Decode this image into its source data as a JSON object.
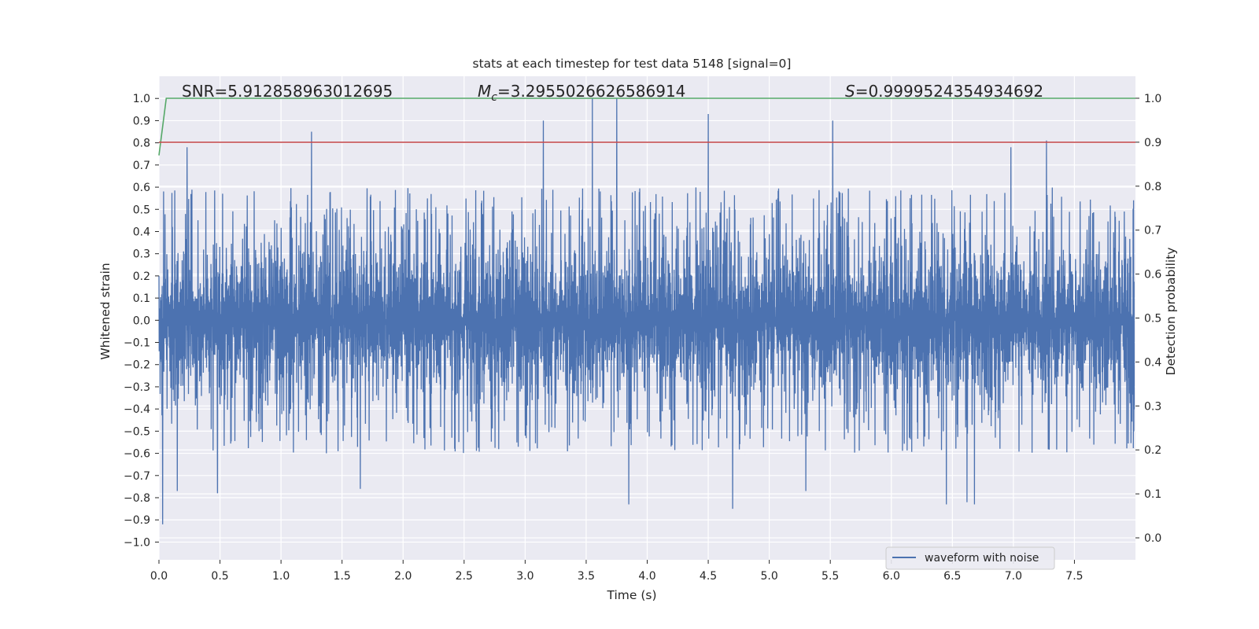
{
  "chart_data": {
    "type": "line",
    "title": "stats at each timestep for test data 5148 [signal=0]",
    "xlabel": "Time (s)",
    "ylabel": "Whitened strain",
    "y2label": "Detection probability",
    "xlim": [
      0.0,
      8.0
    ],
    "ylim": [
      -1.08,
      1.1
    ],
    "y2lim": [
      -0.05,
      1.05
    ],
    "x_ticks": [
      "0.0",
      "0.5",
      "1.0",
      "1.5",
      "2.0",
      "2.5",
      "3.0",
      "3.5",
      "4.0",
      "4.5",
      "5.0",
      "5.5",
      "6.0",
      "6.5",
      "7.0",
      "7.5"
    ],
    "y_ticks": [
      "1.0",
      "0.9",
      "0.8",
      "0.7",
      "0.6",
      "0.5",
      "0.4",
      "0.3",
      "0.2",
      "0.1",
      "0.0",
      "−0.1",
      "−0.2",
      "−0.3",
      "−0.4",
      "−0.5",
      "−0.6",
      "−0.7",
      "−0.8",
      "−0.9",
      "−1.0"
    ],
    "y2_ticks": [
      "1.0",
      "0.9",
      "0.8",
      "0.7",
      "0.6",
      "0.5",
      "0.4",
      "0.3",
      "0.2",
      "0.1",
      "0.0"
    ],
    "grid": true,
    "annotations": {
      "snr": "SNR=5.912858963012695",
      "mc_symbol": "M",
      "mc_sub": "c",
      "mc_value": "=3.2955026626586914",
      "s_symbol": "S",
      "s_value": "=0.9999524354934692"
    },
    "legend": {
      "label": "waveform with noise",
      "location": "lower-right"
    },
    "series": [
      {
        "name": "waveform with noise",
        "axis": "left",
        "color": "#4c72b0",
        "style": "dense-noise",
        "core_amplitude": 0.24,
        "typical_upper": 0.45,
        "typical_lower": -0.45,
        "notable_peaks": [
          {
            "x": 1.25,
            "y": 0.85
          },
          {
            "x": 3.15,
            "y": 0.9
          },
          {
            "x": 3.55,
            "y": 1.0
          },
          {
            "x": 3.75,
            "y": 1.0
          },
          {
            "x": 4.5,
            "y": 0.93
          },
          {
            "x": 5.52,
            "y": 0.9
          },
          {
            "x": 7.27,
            "y": 0.81
          },
          {
            "x": 0.23,
            "y": 0.78
          },
          {
            "x": 6.98,
            "y": 0.78
          }
        ],
        "notable_troughs": [
          {
            "x": 0.03,
            "y": -0.92
          },
          {
            "x": 0.15,
            "y": -0.77
          },
          {
            "x": 0.48,
            "y": -0.78
          },
          {
            "x": 1.65,
            "y": -0.76
          },
          {
            "x": 3.85,
            "y": -0.83
          },
          {
            "x": 4.7,
            "y": -0.85
          },
          {
            "x": 6.45,
            "y": -0.83
          },
          {
            "x": 6.62,
            "y": -0.82
          },
          {
            "x": 6.68,
            "y": -0.83
          },
          {
            "x": 5.3,
            "y": -0.77
          }
        ]
      },
      {
        "name": "detection probability",
        "axis": "right",
        "color": "#55a868",
        "x": [
          0.0,
          0.06,
          0.1,
          8.0
        ],
        "y": [
          0.87,
          1.0,
          1.0,
          1.0
        ]
      },
      {
        "name": "threshold",
        "axis": "right",
        "color": "#c44e52",
        "x": [
          0.0,
          8.0
        ],
        "y": [
          0.9,
          0.9
        ]
      }
    ]
  }
}
